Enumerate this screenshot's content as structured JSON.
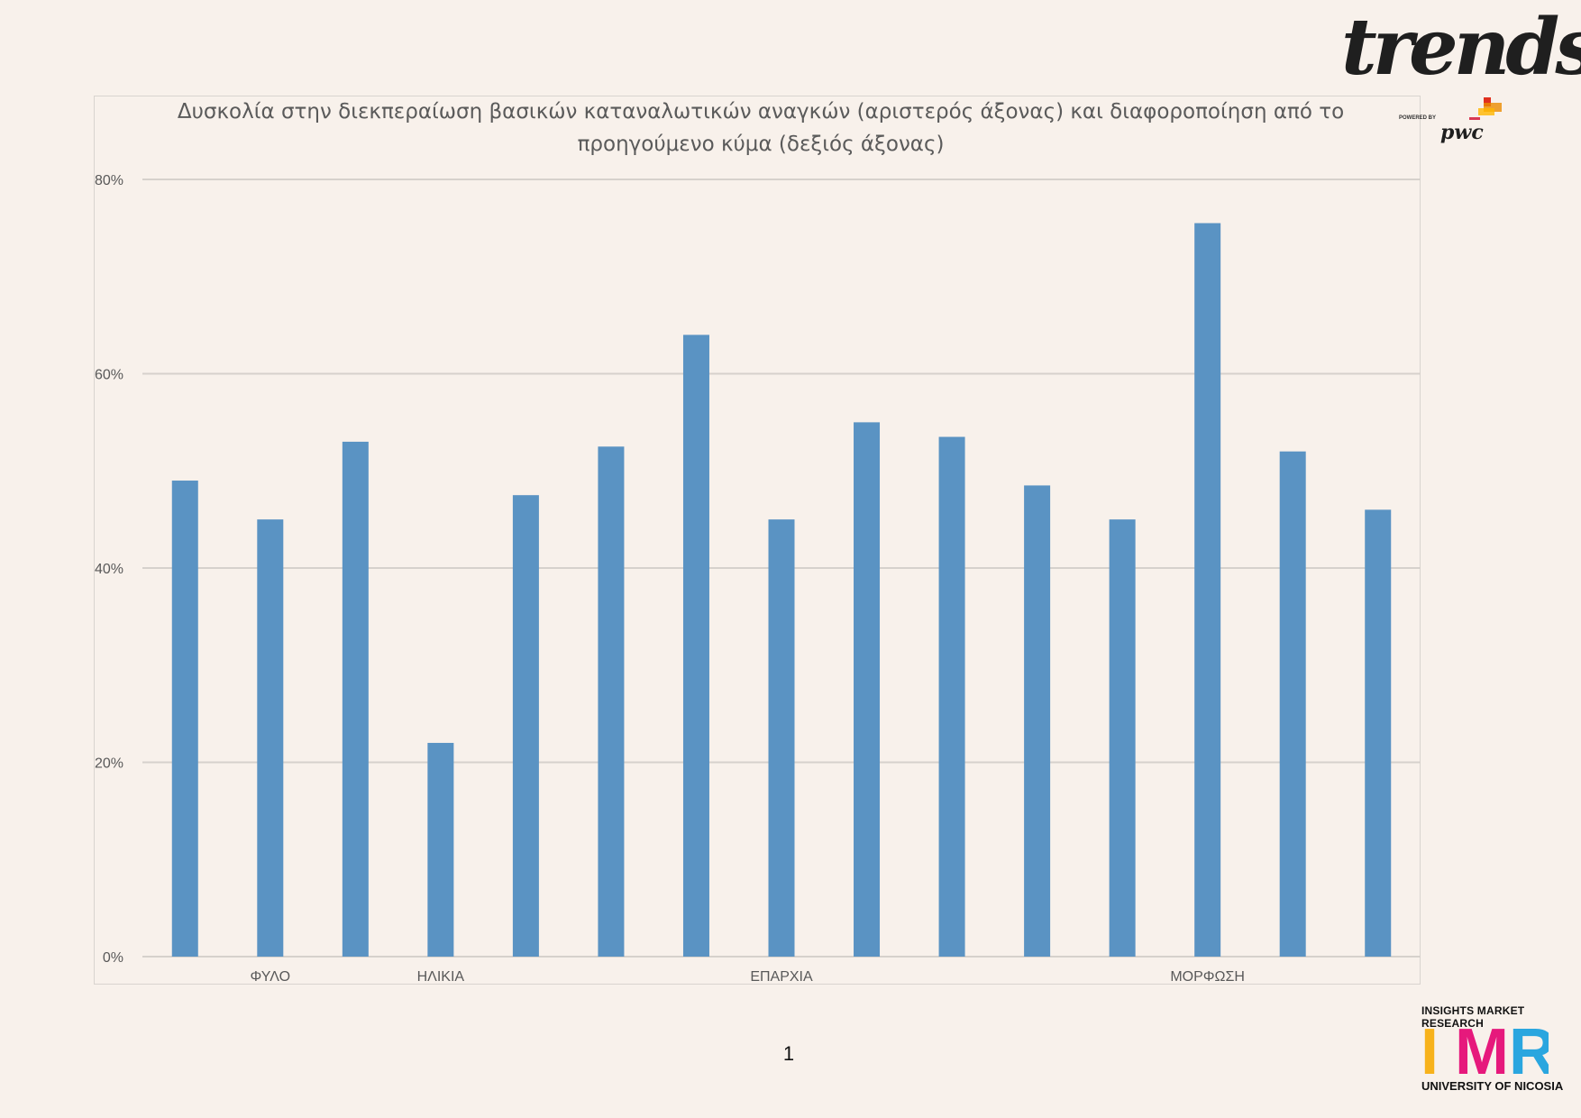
{
  "chart_data": {
    "type": "bar",
    "title_lines": [
      "Δυσκολία στην διεκπεραίωση βασικών καταναλωτικών αναγκών (αριστερός άξονας) και διαφοροποίηση από το",
      "προηγούμενο κύμα (δεξιός άξονας)"
    ],
    "values": [
      49,
      45,
      53,
      22,
      47.5,
      52.5,
      64,
      45,
      55,
      53.5,
      48.5,
      45,
      75.5,
      52,
      46
    ],
    "value_format": "percent",
    "ylim": [
      0,
      80
    ],
    "yticks": [
      0,
      20,
      40,
      60,
      80
    ],
    "ytick_labels": [
      "0%",
      "20%",
      "40%",
      "60%",
      "80%"
    ],
    "group_labels": [
      {
        "label": "ΦΥΛΟ",
        "center_index": 1
      },
      {
        "label": "ΗΛΙΚΙΑ",
        "center_index": 3
      },
      {
        "label": "ΕΠΑΡΧΙΑ",
        "center_index": 7
      },
      {
        "label": "ΜΟΡΦΩΣΗ",
        "center_index": 12
      }
    ],
    "grid": true,
    "bar_color": "#5a93c3"
  },
  "page": {
    "number": "1"
  },
  "logos": {
    "trends": "trends",
    "powered_by": "POWERED BY",
    "pwc": "pwc",
    "imr_top": "INSIGHTS MARKET RESEARCH",
    "imr_bottom": "UNIVERSITY OF NICOSIA",
    "imr_letters": [
      "I",
      "M",
      "R"
    ],
    "imr_colors": [
      "#f7b21b",
      "#e6197c",
      "#2aa6df"
    ]
  }
}
